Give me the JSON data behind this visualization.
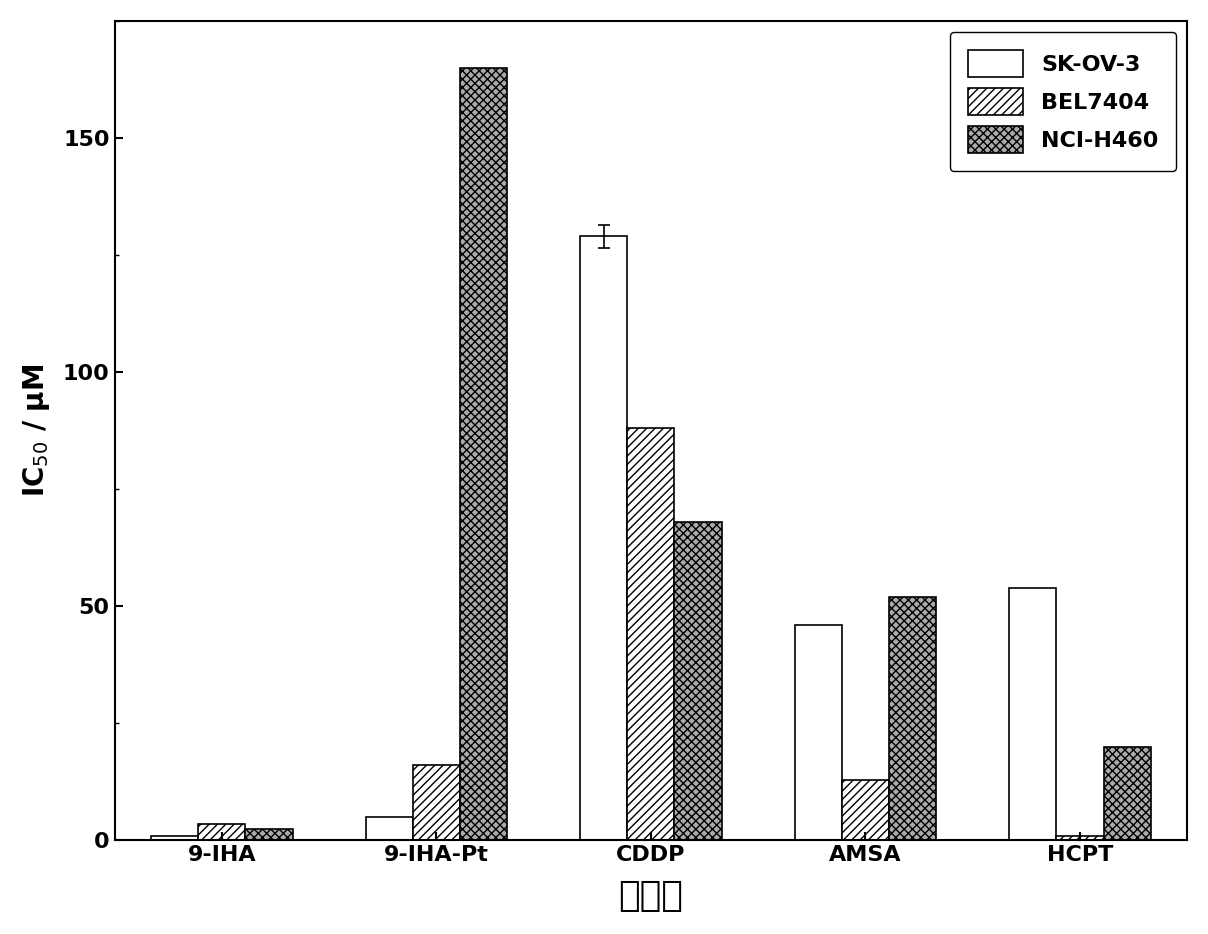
{
  "categories": [
    "9-IHA",
    "9-IHA-Pt",
    "CDDP",
    "AMSA",
    "HCPT"
  ],
  "series": {
    "SK-OV-3": [
      1.0,
      5.0,
      129.0,
      46.0,
      54.0
    ],
    "BEL7404": [
      3.5,
      16.0,
      88.0,
      13.0,
      1.0
    ],
    "NCI-H460": [
      2.5,
      165.0,
      68.0,
      52.0,
      20.0
    ]
  },
  "series_errors": {
    "SK-OV-3": [
      0.0,
      0.0,
      2.5,
      0.0,
      0.0
    ],
    "BEL7404": [
      0.0,
      0.0,
      0.0,
      0.0,
      0.0
    ],
    "NCI-H460": [
      0.0,
      0.0,
      0.0,
      0.0,
      0.0
    ]
  },
  "legend_labels": [
    "SK-OV-3",
    "BEL7404",
    "NCI-H460"
  ],
  "ylabel": "IC$_{50}$ / μM",
  "xlabel": "化合物",
  "ylim": [
    0,
    175
  ],
  "yticks": [
    0,
    50,
    100,
    150
  ],
  "bar_width": 0.22,
  "face_color": "#ffffff",
  "hatch_patterns": [
    "",
    "////",
    "xxxx"
  ],
  "bar_edge_color": "#000000",
  "bar_face_colors": [
    "#ffffff",
    "#ffffff",
    "#aaaaaa"
  ],
  "legend_fontsize": 16,
  "axis_label_fontsize": 20,
  "tick_fontsize": 16,
  "xlabel_fontsize": 26
}
